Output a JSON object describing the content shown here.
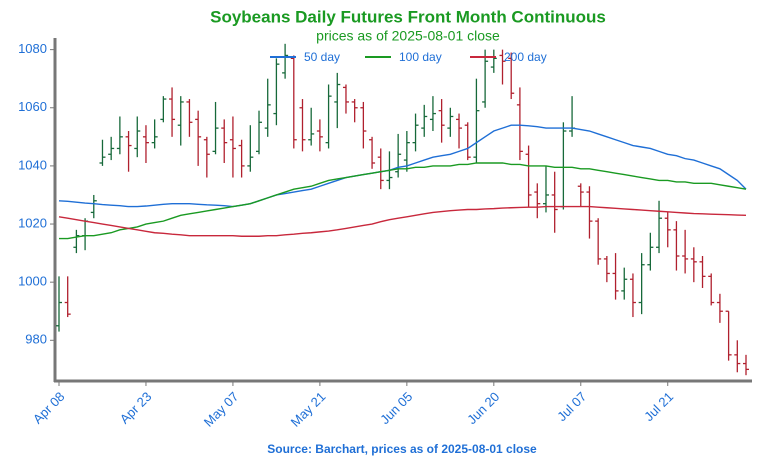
{
  "chart_data": {
    "type": "ohlc",
    "title": "Soybeans Daily Futures Front Month Continuous",
    "subtitle": "prices as of 2025-08-01 close",
    "source": "Source: Barchart, prices as of 2025-08-01 close",
    "categories": [
      "Apr 08",
      null,
      null,
      null,
      null,
      null,
      null,
      null,
      null,
      null,
      "Apr 23",
      null,
      null,
      null,
      null,
      null,
      null,
      null,
      null,
      null,
      "May 07",
      null,
      null,
      null,
      null,
      null,
      null,
      null,
      null,
      null,
      "May 21",
      null,
      null,
      null,
      null,
      null,
      null,
      null,
      null,
      null,
      "Jun 05",
      null,
      null,
      null,
      null,
      null,
      null,
      null,
      null,
      null,
      "Jun 20",
      null,
      null,
      null,
      null,
      null,
      null,
      null,
      null,
      null,
      "Jul 07",
      null,
      null,
      null,
      null,
      null,
      null,
      null,
      null,
      null,
      "Jul 21",
      null,
      null,
      null,
      null,
      null,
      null,
      null,
      null,
      null
    ],
    "open": [
      985,
      993,
      1012,
      1016,
      1024,
      1041,
      1044,
      1046,
      1050,
      1046,
      1050,
      1048,
      1056,
      1063,
      1054,
      1062,
      1056,
      1049,
      1045,
      1053,
      1049,
      1047,
      1040,
      1045,
      1053,
      1058,
      1072,
      1077,
      1060,
      1049,
      1052,
      1048,
      1062,
      1067,
      1062,
      1060,
      1049,
      1043,
      1035,
      1038,
      1042,
      1048,
      1053,
      1056,
      1059,
      1053,
      1056,
      1054,
      1043,
      1062,
      1074,
      1078,
      1077,
      1061,
      1044,
      1031,
      1027,
      1030,
      1026,
      1052,
      1033,
      1031,
      1021,
      1008,
      1003,
      997,
      1001,
      993,
      1006,
      1012,
      1022,
      1018,
      1009,
      1008,
      1007,
      1002,
      993,
      990,
      975,
      972
    ],
    "high": [
      1002,
      1002,
      1018,
      1022,
      1030,
      1049,
      1050,
      1057,
      1052,
      1057,
      1054,
      1056,
      1064,
      1067,
      1064,
      1063,
      1059,
      1050,
      1062,
      1056,
      1057,
      1049,
      1054,
      1059,
      1070,
      1077,
      1082,
      1078,
      1063,
      1060,
      1056,
      1068,
      1072,
      1068,
      1063,
      1062,
      1050,
      1046,
      1045,
      1051,
      1052,
      1058,
      1061,
      1064,
      1063,
      1060,
      1058,
      1055,
      1070,
      1080,
      1080,
      1080,
      1079,
      1067,
      1047,
      1034,
      1040,
      1038,
      1055,
      1064,
      1034,
      1033,
      1022,
      1009,
      1010,
      1005,
      1003,
      1010,
      1017,
      1028,
      1024,
      1021,
      1018,
      1012,
      1009,
      1003,
      996,
      990,
      980,
      975
    ],
    "low": [
      983,
      988,
      1010,
      1011,
      1022,
      1040,
      1042,
      1044,
      1038,
      1043,
      1041,
      1046,
      1055,
      1050,
      1047,
      1050,
      1040,
      1036,
      1044,
      1041,
      1036,
      1036,
      1038,
      1044,
      1050,
      1054,
      1070,
      1046,
      1045,
      1047,
      1045,
      1046,
      1053,
      1058,
      1055,
      1046,
      1039,
      1032,
      1032,
      1036,
      1038,
      1045,
      1050,
      1052,
      1048,
      1050,
      1046,
      1042,
      1041,
      1060,
      1072,
      1068,
      1063,
      1042,
      1026,
      1022,
      1024,
      1017,
      1025,
      1050,
      1026,
      1015,
      1006,
      1000,
      994,
      994,
      988,
      989,
      1004,
      1010,
      1012,
      1004,
      1003,
      1000,
      998,
      992,
      986,
      973,
      969,
      968
    ],
    "close": [
      993,
      989,
      1016,
      1021,
      1028,
      1043,
      1046,
      1050,
      1047,
      1052,
      1048,
      1050,
      1063,
      1056,
      1062,
      1055,
      1050,
      1044,
      1053,
      1048,
      1046,
      1040,
      1043,
      1055,
      1061,
      1075,
      1078,
      1049,
      1049,
      1051,
      1050,
      1064,
      1068,
      1062,
      1060,
      1052,
      1041,
      1035,
      1036,
      1044,
      1048,
      1054,
      1057,
      1058,
      1054,
      1057,
      1053,
      1043,
      1059,
      1076,
      1077,
      1076,
      1065,
      1045,
      1030,
      1027,
      1030,
      1025,
      1052,
      1053,
      1031,
      1021,
      1008,
      1003,
      997,
      1001,
      993,
      1006,
      1012,
      1022,
      1018,
      1009,
      1008,
      1007,
      1002,
      993,
      990,
      975,
      972,
      970
    ],
    "up_color": "#17693a",
    "down_color": "#b0202e",
    "series": [
      {
        "name": "50 day",
        "color": "#1f6fd6",
        "values": [
          1028,
          1027.8,
          1027.5,
          1027.2,
          1027,
          1026.7,
          1026.5,
          1026.3,
          1026,
          1026,
          1026.2,
          1026.5,
          1026.8,
          1027,
          1027,
          1027,
          1026.8,
          1026.6,
          1026.5,
          1026.3,
          1026,
          1026.5,
          1027,
          1028,
          1029,
          1030,
          1030.5,
          1031,
          1031.5,
          1032,
          1033,
          1034,
          1035,
          1036,
          1036.5,
          1037,
          1037.5,
          1038,
          1038.5,
          1039.5,
          1040,
          1041,
          1042,
          1043,
          1043.5,
          1044,
          1045,
          1046,
          1048,
          1050,
          1052,
          1053,
          1054,
          1054,
          1053.8,
          1053.5,
          1053,
          1053,
          1053,
          1053,
          1052.5,
          1052,
          1051,
          1050,
          1049,
          1048,
          1047,
          1046.5,
          1046,
          1045,
          1044,
          1043.5,
          1042.5,
          1042,
          1041,
          1040,
          1039,
          1037,
          1035,
          1032
        ]
      },
      {
        "name": "100 day",
        "color": "#1a9a22",
        "values": [
          1015,
          1015,
          1015.5,
          1016,
          1016,
          1016.5,
          1017,
          1018,
          1018.5,
          1019,
          1020,
          1020.5,
          1021,
          1022,
          1023,
          1023.5,
          1024,
          1024.5,
          1025,
          1025.5,
          1026,
          1026.5,
          1027,
          1028,
          1029,
          1030,
          1031,
          1032,
          1032.5,
          1033,
          1034,
          1035,
          1035.5,
          1036,
          1036.5,
          1037,
          1037.5,
          1038,
          1038.5,
          1039,
          1039,
          1039.5,
          1039.5,
          1040,
          1040,
          1040,
          1040.5,
          1040.5,
          1041,
          1041,
          1041,
          1041,
          1040.5,
          1040.5,
          1040,
          1040,
          1040,
          1039.5,
          1039.5,
          1039.5,
          1039,
          1039,
          1038.5,
          1038,
          1037.5,
          1037,
          1036.5,
          1036,
          1035.5,
          1035,
          1035,
          1034.5,
          1034.5,
          1034,
          1034,
          1034,
          1033.5,
          1033,
          1032.5,
          1032
        ]
      },
      {
        "name": "200 day",
        "color": "#c8283c",
        "values": [
          1022.5,
          1022,
          1021.5,
          1021,
          1020.5,
          1020,
          1019.5,
          1019,
          1018.5,
          1018,
          1017.5,
          1017,
          1016.8,
          1016.5,
          1016.3,
          1016,
          1016,
          1016,
          1016,
          1016,
          1016,
          1015.8,
          1015.8,
          1015.8,
          1016,
          1016,
          1016.3,
          1016.5,
          1016.8,
          1017,
          1017.3,
          1017.6,
          1018,
          1018.5,
          1019,
          1019.5,
          1020,
          1020.8,
          1021.5,
          1022,
          1022.5,
          1023,
          1023.5,
          1024,
          1024.3,
          1024.6,
          1024.8,
          1025,
          1025,
          1025.2,
          1025.3,
          1025.5,
          1025.6,
          1025.7,
          1025.8,
          1025.8,
          1026,
          1026,
          1026,
          1026,
          1026,
          1026,
          1025.8,
          1025.6,
          1025.4,
          1025.2,
          1025,
          1024.8,
          1024.6,
          1024.4,
          1024.2,
          1024,
          1023.8,
          1023.6,
          1023.5,
          1023.4,
          1023.3,
          1023.2,
          1023.1,
          1023
        ]
      }
    ],
    "ylim": [
      966,
      1084
    ],
    "yticks": [
      980,
      1000,
      1020,
      1040,
      1060,
      1080
    ],
    "legend": "upper center",
    "title_color": "#1a9a22",
    "label_color": "#1f6fd6"
  }
}
